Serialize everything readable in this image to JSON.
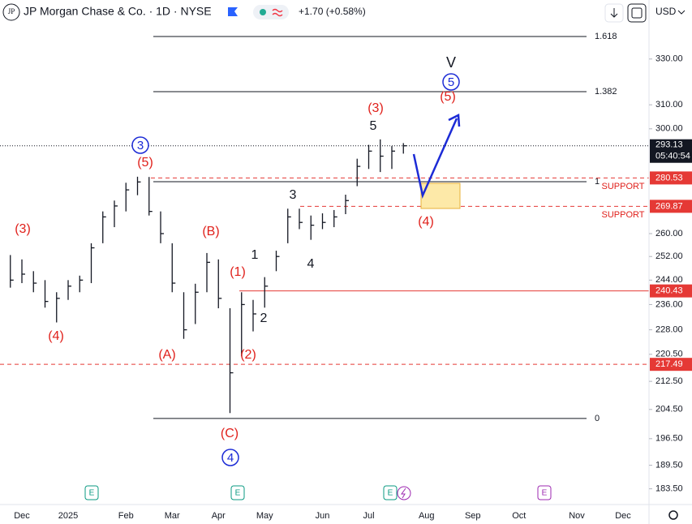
{
  "header": {
    "logo": "JP",
    "symbol": "JP Morgan Chase & Co. · 1D · NYSE",
    "change": "+1.70 (+0.58%)",
    "currency": "USD"
  },
  "chart_data": {
    "type": "ohlc",
    "log_scale": true,
    "color": "#131722",
    "categories": [
      null,
      "Dec",
      null,
      null,
      null,
      "2025",
      null,
      null,
      null,
      null,
      "Feb",
      null,
      null,
      null,
      "Mar",
      null,
      null,
      null,
      "Apr",
      null,
      null,
      null,
      "May",
      null,
      null,
      null,
      null,
      "Jun",
      null,
      null,
      null,
      "Jul",
      null,
      null,
      null,
      null,
      "Aug",
      null,
      null,
      null,
      "Sep",
      null,
      null,
      null,
      "Oct",
      null,
      null,
      null,
      null,
      "Nov",
      null,
      null,
      null,
      "Dec",
      null
    ],
    "high": [
      252.5,
      251,
      247,
      244,
      240,
      244,
      245.5,
      256.6,
      268,
      272,
      278.7,
      281,
      280.9,
      268,
      256.6,
      240,
      242.8,
      253.2,
      251,
      234.8,
      240,
      237.5,
      245,
      254,
      269,
      269,
      266.5,
      267.3,
      268.5,
      274.2,
      288,
      293.5,
      295.7,
      293,
      294.2,
      null,
      null,
      null,
      null,
      null,
      null,
      null,
      null,
      null,
      null,
      null,
      null,
      null,
      null,
      null,
      null,
      null,
      null,
      null,
      null
    ],
    "low": [
      241.5,
      243,
      240,
      235,
      230.3,
      237.5,
      240,
      243,
      256.6,
      262.3,
      268,
      274,
      266.5,
      256.6,
      240,
      225.2,
      229.8,
      240,
      234.8,
      203.5,
      219.9,
      227.5,
      235,
      247,
      256.6,
      261.6,
      257.8,
      261.6,
      262.3,
      267,
      277.4,
      284,
      282.8,
      284,
      290,
      null,
      null,
      null,
      null,
      null,
      null,
      null,
      null,
      null,
      null,
      null,
      null,
      null,
      null,
      null,
      null,
      null,
      null,
      null,
      null
    ],
    "close": [
      244,
      246,
      243,
      237,
      238,
      242,
      244,
      255,
      266,
      270,
      276,
      279,
      268,
      260,
      243,
      228,
      240,
      250,
      238,
      215,
      236,
      233,
      242,
      252,
      266,
      264,
      263,
      264,
      266,
      272,
      285,
      291,
      289,
      291,
      293.13,
      null,
      null,
      null,
      null,
      null,
      null,
      null,
      null,
      null,
      null,
      null,
      null,
      null,
      null,
      null,
      null,
      null,
      null,
      null,
      null
    ],
    "ylim": [
      180,
      346
    ],
    "yticks": [
      {
        "value": 183.5,
        "label": "183.50"
      },
      {
        "value": 189.5,
        "label": "189.50"
      },
      {
        "value": 196.5,
        "label": "196.50"
      },
      {
        "value": 204.5,
        "label": "204.50"
      },
      {
        "value": 212.5,
        "label": "212.50"
      },
      {
        "value": 220.5,
        "label": "220.50"
      },
      {
        "value": 228,
        "label": "228.00"
      },
      {
        "value": 236,
        "label": "236.00"
      },
      {
        "value": 244,
        "label": "244.00"
      },
      {
        "value": 252,
        "label": "252.00"
      },
      {
        "value": 260,
        "label": "260.00"
      },
      {
        "value": 300,
        "label": "300.00"
      },
      {
        "value": 310,
        "label": "310.00"
      },
      {
        "value": 330,
        "label": "330.00"
      }
    ],
    "last_price": 293.13,
    "countdown": "05:40:54",
    "price_lines": [
      {
        "value": 280.53,
        "color": "#e53935",
        "style": "dashed"
      },
      {
        "value": 269.87,
        "color": "#e53935",
        "style": "dashed"
      },
      {
        "value": 240.43,
        "color": "#e53935",
        "style": "solid"
      },
      {
        "value": 217.49,
        "color": "#e53935",
        "style": "dashed"
      }
    ],
    "fib_levels": [
      {
        "label": "1.618",
        "value": 340.3
      },
      {
        "label": "1.382",
        "value": 315.6
      },
      {
        "label": "1",
        "value": 279.1
      },
      {
        "label": "0",
        "value": 202.0
      }
    ],
    "annotations": [
      "(3)",
      "(4)",
      "3",
      "(5)",
      "(B)",
      "(A)",
      "(1)",
      "(2)",
      "(C)",
      "4",
      "1",
      "2",
      "3",
      "4",
      "(3)",
      "5",
      "V",
      "5",
      "(5)",
      "(4)",
      "SUPPORT",
      "SUPPORT"
    ],
    "events": [
      "E",
      "E",
      "E",
      "E"
    ]
  }
}
